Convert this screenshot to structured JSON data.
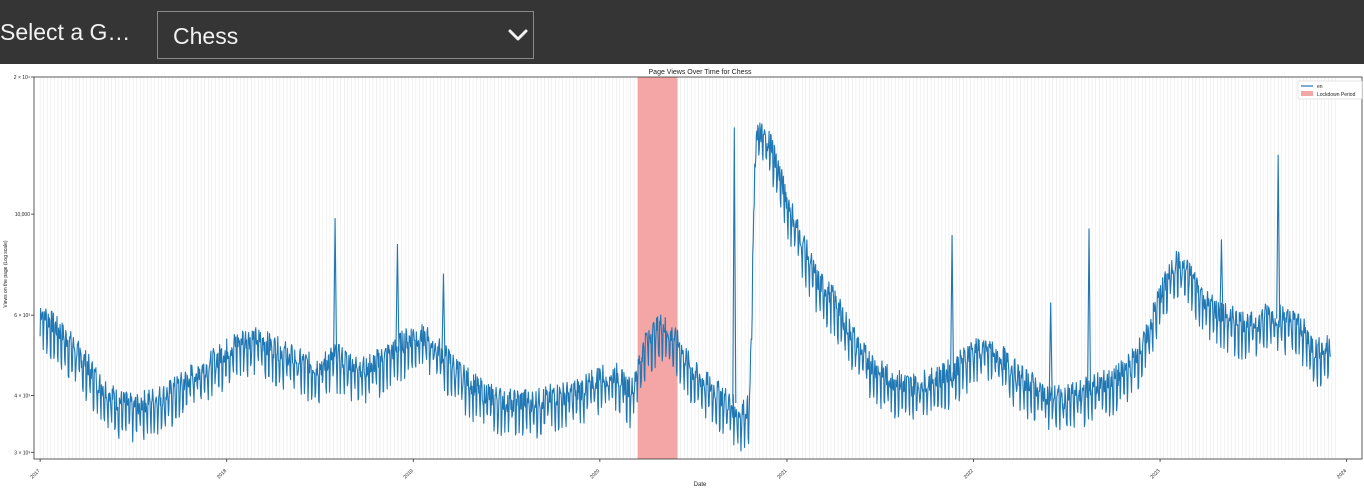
{
  "header": {
    "select_label": "Select a G…",
    "selected_game": "Chess",
    "chevron_icon": "chevron-down-icon"
  },
  "chart_data": {
    "type": "line",
    "title": "Page Views Over Time for Chess",
    "xlabel": "Date",
    "ylabel": "Views on the page (Log scale)",
    "y_scale": "log",
    "ylim": [
      2900,
      20000
    ],
    "xlim": [
      "2016-12-20",
      "2024-01-31"
    ],
    "x_ticks": [
      "2017",
      "2018",
      "2019",
      "2020",
      "2021",
      "2022",
      "2023",
      "2024"
    ],
    "y_ticks": [
      {
        "value": 3000,
        "label": "3 × 10³"
      },
      {
        "value": 4000,
        "label": "4 × 10³"
      },
      {
        "value": 6000,
        "label": "6 × 10³"
      },
      {
        "value": 10000,
        "label": "10,000"
      },
      {
        "value": 20000,
        "label": "2 × 10⁴"
      }
    ],
    "grid": "vertical-weekly",
    "legend": {
      "placement": "top-right",
      "entries": [
        "en",
        "Lockdown Period"
      ]
    },
    "lockdown_period": {
      "start": "2020-03-15",
      "end": "2020-06-01",
      "label": "Lockdown Period",
      "color": "#f4a6a6"
    },
    "colors": {
      "line": "#1f77b4",
      "lockdown": "#f4a6a6"
    },
    "series": [
      {
        "name": "en",
        "x": [
          "2017-01-01",
          "2017-02-01",
          "2017-03-01",
          "2017-04-01",
          "2017-05-01",
          "2017-06-01",
          "2017-07-01",
          "2017-08-01",
          "2017-09-01",
          "2017-10-01",
          "2017-11-01",
          "2017-12-01",
          "2018-01-01",
          "2018-02-01",
          "2018-03-01",
          "2018-04-01",
          "2018-05-01",
          "2018-06-01",
          "2018-07-01",
          "2018-08-01",
          "2018-09-01",
          "2018-10-01",
          "2018-11-01",
          "2018-12-01",
          "2019-01-01",
          "2019-02-01",
          "2019-03-01",
          "2019-04-01",
          "2019-05-01",
          "2019-06-01",
          "2019-07-01",
          "2019-08-01",
          "2019-09-01",
          "2019-10-01",
          "2019-11-01",
          "2019-12-01",
          "2020-01-01",
          "2020-02-01",
          "2020-03-01",
          "2020-04-01",
          "2020-05-01",
          "2020-06-01",
          "2020-07-01",
          "2020-08-01",
          "2020-09-01",
          "2020-10-01",
          "2020-10-20",
          "2020-11-01",
          "2020-12-01",
          "2021-01-01",
          "2021-02-01",
          "2021-03-01",
          "2021-04-01",
          "2021-05-01",
          "2021-06-01",
          "2021-07-01",
          "2021-08-01",
          "2021-09-01",
          "2021-10-01",
          "2021-11-01",
          "2021-12-01",
          "2022-01-01",
          "2022-02-01",
          "2022-03-01",
          "2022-04-01",
          "2022-05-01",
          "2022-06-01",
          "2022-07-01",
          "2022-08-01",
          "2022-09-01",
          "2022-10-01",
          "2022-11-01",
          "2022-12-01",
          "2023-01-01",
          "2023-02-01",
          "2023-03-01",
          "2023-04-01",
          "2023-05-01",
          "2023-06-01",
          "2023-07-01",
          "2023-08-01",
          "2023-09-01",
          "2023-10-01",
          "2023-11-01",
          "2023-12-01"
        ],
        "y": [
          6000,
          5500,
          5100,
          4600,
          4100,
          3800,
          3700,
          3800,
          3900,
          4100,
          4400,
          4600,
          4900,
          5200,
          5200,
          5000,
          4800,
          4600,
          4500,
          4800,
          4600,
          4500,
          4700,
          5000,
          5300,
          5200,
          4800,
          4400,
          4100,
          3900,
          3800,
          3800,
          3800,
          3900,
          3950,
          4050,
          4300,
          4350,
          4000,
          5200,
          5600,
          5100,
          4400,
          4100,
          3850,
          3550,
          3700,
          15000,
          14000,
          10500,
          8500,
          7000,
          6400,
          5500,
          4800,
          4400,
          4200,
          4100,
          4200,
          4300,
          4550,
          4950,
          4950,
          4700,
          4300,
          4100,
          3900,
          3850,
          4000,
          4150,
          4200,
          4550,
          5100,
          6500,
          7700,
          7200,
          6300,
          5900,
          5700,
          5600,
          5900,
          5800,
          5600,
          4900,
          5000
        ]
      }
    ],
    "spikes": [
      {
        "x": "2018-08-01",
        "y": 9800
      },
      {
        "x": "2018-12-01",
        "y": 8600
      },
      {
        "x": "2019-03-01",
        "y": 7400
      },
      {
        "x": "2020-09-20",
        "y": 15500
      },
      {
        "x": "2021-11-20",
        "y": 9000
      },
      {
        "x": "2022-06-01",
        "y": 6400
      },
      {
        "x": "2022-08-15",
        "y": 9300
      },
      {
        "x": "2023-05-01",
        "y": 8800
      },
      {
        "x": "2023-08-20",
        "y": 13500
      }
    ]
  }
}
